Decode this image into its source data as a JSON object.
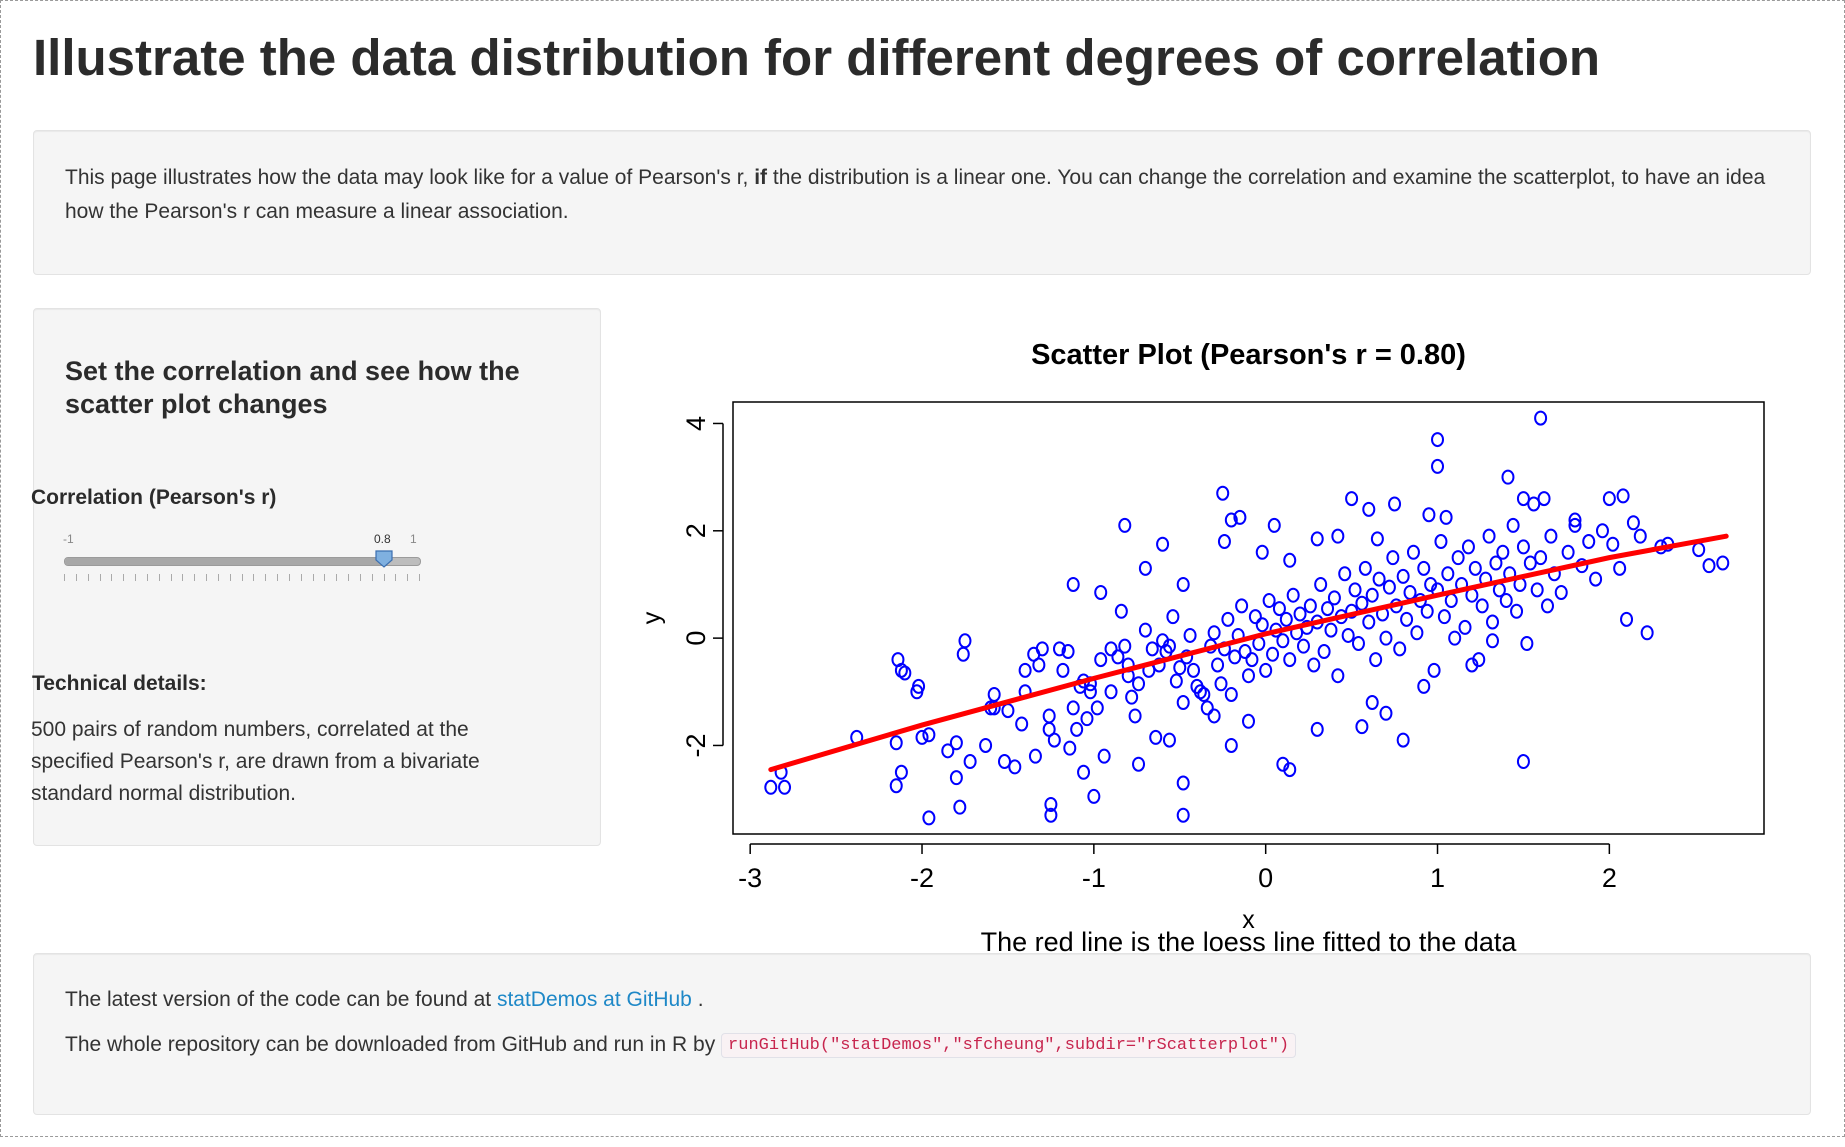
{
  "page": {
    "title": "Illustrate the data distribution for different degrees of correlation"
  },
  "intro": {
    "text_before": "This page illustrates how the data may look like for a value of Pearson's r, ",
    "bold": "if",
    "text_after": " the distribution is a linear one. You can change the correlation and examine the scatterplot, to have an idea how the Pearson's r can measure a linear association."
  },
  "sidebar": {
    "heading": "Set the correlation and see how the scatter plot changes",
    "slider": {
      "label": "Correlation (Pearson's r)",
      "min_label": "-1",
      "max_label": "1",
      "value_label": "0.8",
      "min": -1,
      "max": 1,
      "value": 0.8
    },
    "technical_label": "Technical details:",
    "technical_text": "500 pairs of random numbers, correlated at the specified Pearson's r, are drawn from a bivariate standard normal distribution."
  },
  "footer": {
    "line1_prefix": "The latest version of the code can be found at ",
    "link_text": "statDemos at GitHub",
    "line1_suffix": " .",
    "line2_prefix": "The whole repository can be downloaded from GitHub and run in R by",
    "code": "runGitHub(\"statDemos\",\"sfcheung\",subdir=\"rScatterplot\")"
  },
  "colors": {
    "points": "#0000ff",
    "loess": "#ff0000",
    "link": "#1e88c7",
    "code": "#c7254e"
  },
  "chart_data": {
    "type": "scatter",
    "title": "Scatter Plot (Pearson's r = 0.80)",
    "xlabel": "x",
    "ylabel": "y",
    "caption": "The red line is the loess line fitted to the data",
    "xlim": [
      -3.1,
      2.9
    ],
    "ylim": [
      -3.65,
      4.4
    ],
    "xticks": [
      -3,
      -2,
      -1,
      0,
      1,
      2
    ],
    "yticks": [
      -2,
      0,
      2,
      4
    ],
    "xtick_labels": [
      "-3",
      "-2",
      "-1",
      "0",
      "1",
      "2"
    ],
    "ytick_labels": [
      "-2",
      "0",
      "2",
      "4"
    ],
    "series": [
      {
        "marker": "open-circle",
        "points": [
          [
            -2.88,
            -2.78
          ],
          [
            -2.8,
            -2.78
          ],
          [
            -2.82,
            -2.5
          ],
          [
            -2.38,
            -1.85
          ],
          [
            -2.15,
            -1.95
          ],
          [
            -2.15,
            -2.75
          ],
          [
            -2.14,
            -0.4
          ],
          [
            -2.12,
            -0.6
          ],
          [
            -2.1,
            -0.65
          ],
          [
            -2.12,
            -2.5
          ],
          [
            -2.02,
            -0.9
          ],
          [
            -2.03,
            -1.0
          ],
          [
            -2.0,
            -1.85
          ],
          [
            -1.96,
            -1.8
          ],
          [
            -1.96,
            -3.35
          ],
          [
            -1.85,
            -2.1
          ],
          [
            -1.8,
            -1.95
          ],
          [
            -1.8,
            -2.6
          ],
          [
            -1.78,
            -3.15
          ],
          [
            -1.76,
            -0.3
          ],
          [
            -1.75,
            -0.05
          ],
          [
            -1.72,
            -2.3
          ],
          [
            -1.63,
            -2.0
          ],
          [
            -1.58,
            -1.05
          ],
          [
            -1.58,
            -1.3
          ],
          [
            -1.6,
            -1.3
          ],
          [
            -1.5,
            -1.35
          ],
          [
            -1.46,
            -2.4
          ],
          [
            -1.42,
            -1.6
          ],
          [
            -1.4,
            -1.0
          ],
          [
            -1.4,
            -0.6
          ],
          [
            -1.35,
            -0.3
          ],
          [
            -1.32,
            -0.5
          ],
          [
            -1.3,
            -0.2
          ],
          [
            -1.26,
            -1.45
          ],
          [
            -1.25,
            -3.1
          ],
          [
            -1.25,
            -3.3
          ],
          [
            -1.23,
            -1.9
          ],
          [
            -1.2,
            -0.2
          ],
          [
            -1.18,
            -0.6
          ],
          [
            -1.15,
            -0.25
          ],
          [
            -1.12,
            -1.3
          ],
          [
            -1.1,
            -1.7
          ],
          [
            -1.08,
            -0.9
          ],
          [
            -1.06,
            -0.8
          ],
          [
            -1.04,
            -1.5
          ],
          [
            -1.02,
            -0.85
          ],
          [
            -1.02,
            -1.0
          ],
          [
            -0.98,
            -1.3
          ],
          [
            -0.96,
            -0.4
          ],
          [
            -0.94,
            -2.2
          ],
          [
            -0.9,
            -0.2
          ],
          [
            -0.9,
            -1.0
          ],
          [
            -0.86,
            -0.35
          ],
          [
            -0.84,
            0.5
          ],
          [
            -0.82,
            -0.15
          ],
          [
            -0.8,
            -0.7
          ],
          [
            -0.78,
            -1.1
          ],
          [
            -0.76,
            -1.45
          ],
          [
            -0.74,
            -0.85
          ],
          [
            -0.7,
            0.15
          ],
          [
            -0.68,
            -0.6
          ],
          [
            -0.66,
            -0.2
          ],
          [
            -0.64,
            -1.85
          ],
          [
            -0.62,
            -0.5
          ],
          [
            -0.6,
            -0.05
          ],
          [
            -0.58,
            -0.25
          ],
          [
            -0.56,
            -0.15
          ],
          [
            -0.54,
            0.4
          ],
          [
            -0.52,
            -0.8
          ],
          [
            -0.5,
            -0.55
          ],
          [
            -0.48,
            -1.2
          ],
          [
            -0.46,
            -0.35
          ],
          [
            -0.44,
            0.05
          ],
          [
            -0.42,
            -0.6
          ],
          [
            -0.4,
            -0.9
          ],
          [
            -0.38,
            -1.0
          ],
          [
            -0.36,
            -1.05
          ],
          [
            -0.34,
            -1.3
          ],
          [
            -0.32,
            -0.15
          ],
          [
            -0.3,
            0.1
          ],
          [
            -0.28,
            -0.5
          ],
          [
            -0.26,
            -0.85
          ],
          [
            -0.24,
            -0.2
          ],
          [
            -0.22,
            0.35
          ],
          [
            -0.2,
            -1.05
          ],
          [
            -0.18,
            -0.35
          ],
          [
            -0.16,
            0.05
          ],
          [
            -0.14,
            0.6
          ],
          [
            -0.12,
            -0.25
          ],
          [
            -0.1,
            -0.7
          ],
          [
            -0.08,
            -0.4
          ],
          [
            -0.06,
            0.4
          ],
          [
            -0.04,
            -0.1
          ],
          [
            -0.02,
            0.25
          ],
          [
            0.0,
            -0.6
          ],
          [
            0.02,
            0.7
          ],
          [
            0.04,
            -0.3
          ],
          [
            0.06,
            0.15
          ],
          [
            0.08,
            0.55
          ],
          [
            0.1,
            -0.05
          ],
          [
            0.12,
            0.35
          ],
          [
            0.14,
            -0.4
          ],
          [
            0.16,
            0.8
          ],
          [
            0.18,
            0.1
          ],
          [
            0.2,
            0.45
          ],
          [
            0.22,
            -0.15
          ],
          [
            0.24,
            0.2
          ],
          [
            0.26,
            0.6
          ],
          [
            0.28,
            -0.5
          ],
          [
            0.3,
            0.3
          ],
          [
            0.32,
            1.0
          ],
          [
            0.34,
            -0.25
          ],
          [
            0.36,
            0.55
          ],
          [
            0.38,
            0.15
          ],
          [
            0.4,
            0.75
          ],
          [
            0.42,
            -0.7
          ],
          [
            0.44,
            0.4
          ],
          [
            0.46,
            1.2
          ],
          [
            0.48,
            0.05
          ],
          [
            0.5,
            0.5
          ],
          [
            0.52,
            0.9
          ],
          [
            0.54,
            -0.1
          ],
          [
            0.56,
            0.65
          ],
          [
            0.58,
            1.3
          ],
          [
            0.6,
            0.3
          ],
          [
            0.62,
            0.8
          ],
          [
            0.64,
            -0.4
          ],
          [
            0.66,
            1.1
          ],
          [
            0.68,
            0.45
          ],
          [
            0.7,
            0.0
          ],
          [
            0.72,
            0.95
          ],
          [
            0.74,
            1.5
          ],
          [
            0.76,
            0.6
          ],
          [
            0.78,
            -0.2
          ],
          [
            0.8,
            1.15
          ],
          [
            0.82,
            0.35
          ],
          [
            0.84,
            0.85
          ],
          [
            0.86,
            1.6
          ],
          [
            0.88,
            0.1
          ],
          [
            0.9,
            0.7
          ],
          [
            0.92,
            1.3
          ],
          [
            0.94,
            0.5
          ],
          [
            0.96,
            1.0
          ],
          [
            0.98,
            -0.6
          ],
          [
            1.0,
            0.9
          ],
          [
            1.02,
            1.8
          ],
          [
            1.04,
            0.4
          ],
          [
            1.06,
            1.2
          ],
          [
            1.08,
            0.7
          ],
          [
            1.1,
            0.0
          ],
          [
            1.12,
            1.5
          ],
          [
            1.14,
            1.0
          ],
          [
            1.16,
            0.2
          ],
          [
            1.18,
            1.7
          ],
          [
            1.2,
            0.8
          ],
          [
            1.22,
            1.3
          ],
          [
            1.24,
            -0.4
          ],
          [
            1.26,
            0.6
          ],
          [
            1.28,
            1.1
          ],
          [
            1.3,
            1.9
          ],
          [
            1.32,
            0.3
          ],
          [
            1.34,
            1.4
          ],
          [
            1.36,
            0.9
          ],
          [
            1.38,
            1.6
          ],
          [
            1.4,
            0.7
          ],
          [
            1.42,
            1.2
          ],
          [
            1.44,
            2.1
          ],
          [
            1.46,
            0.5
          ],
          [
            1.48,
            1.0
          ],
          [
            1.5,
            1.7
          ],
          [
            1.52,
            -0.1
          ],
          [
            1.54,
            1.4
          ],
          [
            1.56,
            2.5
          ],
          [
            1.58,
            0.9
          ],
          [
            1.6,
            1.5
          ],
          [
            1.62,
            2.6
          ],
          [
            1.64,
            0.6
          ],
          [
            1.66,
            1.9
          ],
          [
            1.68,
            1.2
          ],
          [
            1.72,
            0.85
          ],
          [
            1.76,
            1.6
          ],
          [
            1.8,
            2.2
          ],
          [
            1.84,
            1.35
          ],
          [
            1.88,
            1.8
          ],
          [
            1.92,
            1.1
          ],
          [
            1.96,
            2.0
          ],
          [
            2.0,
            2.6
          ],
          [
            2.02,
            1.75
          ],
          [
            2.06,
            1.3
          ],
          [
            2.1,
            0.35
          ],
          [
            2.14,
            2.15
          ],
          [
            2.18,
            1.9
          ],
          [
            2.22,
            0.1
          ],
          [
            2.3,
            1.7
          ],
          [
            2.34,
            1.75
          ],
          [
            2.52,
            1.65
          ],
          [
            2.58,
            1.35
          ],
          [
            2.66,
            1.4
          ],
          [
            1.6,
            4.1
          ],
          [
            1.0,
            3.7
          ],
          [
            1.0,
            3.2
          ],
          [
            1.5,
            2.6
          ],
          [
            1.41,
            3.0
          ],
          [
            0.95,
            2.3
          ],
          [
            0.5,
            2.6
          ],
          [
            -0.25,
            2.7
          ],
          [
            -0.2,
            2.2
          ],
          [
            -0.15,
            2.25
          ],
          [
            0.05,
            2.1
          ],
          [
            -0.82,
            2.1
          ],
          [
            0.6,
            2.4
          ],
          [
            0.75,
            2.5
          ],
          [
            1.05,
            2.25
          ],
          [
            1.8,
            2.1
          ],
          [
            2.08,
            2.65
          ],
          [
            -0.24,
            1.8
          ],
          [
            -1.12,
            1.0
          ],
          [
            -0.96,
            0.85
          ],
          [
            -0.6,
            1.75
          ],
          [
            -0.7,
            1.3
          ],
          [
            -0.48,
            1.0
          ],
          [
            0.42,
            1.9
          ],
          [
            0.65,
            1.85
          ],
          [
            0.3,
            1.85
          ],
          [
            -0.02,
            1.6
          ],
          [
            0.14,
            1.45
          ],
          [
            -0.8,
            -0.5
          ],
          [
            -1.06,
            -2.5
          ],
          [
            -1.0,
            -2.95
          ],
          [
            -0.48,
            -2.7
          ],
          [
            -0.48,
            -3.3
          ],
          [
            0.1,
            -2.35
          ],
          [
            0.14,
            -2.45
          ],
          [
            0.8,
            -1.9
          ],
          [
            1.5,
            -2.3
          ],
          [
            -0.56,
            -1.9
          ],
          [
            -0.74,
            -2.35
          ],
          [
            -1.26,
            -1.7
          ],
          [
            -1.34,
            -2.2
          ],
          [
            -1.52,
            -2.3
          ],
          [
            -1.14,
            -2.05
          ],
          [
            -0.3,
            -1.45
          ],
          [
            -0.1,
            -1.55
          ],
          [
            -0.2,
            -2.0
          ],
          [
            0.3,
            -1.7
          ],
          [
            0.56,
            -1.65
          ],
          [
            0.62,
            -1.2
          ],
          [
            0.92,
            -0.9
          ],
          [
            1.2,
            -0.5
          ],
          [
            1.32,
            -0.05
          ],
          [
            0.7,
            -1.4
          ]
        ]
      }
    ],
    "loess": [
      [
        -2.88,
        -2.45
      ],
      [
        -2.0,
        -1.62
      ],
      [
        -1.0,
        -0.75
      ],
      [
        0.0,
        0.08
      ],
      [
        1.0,
        0.8
      ],
      [
        2.0,
        1.5
      ],
      [
        2.68,
        1.9
      ]
    ]
  }
}
